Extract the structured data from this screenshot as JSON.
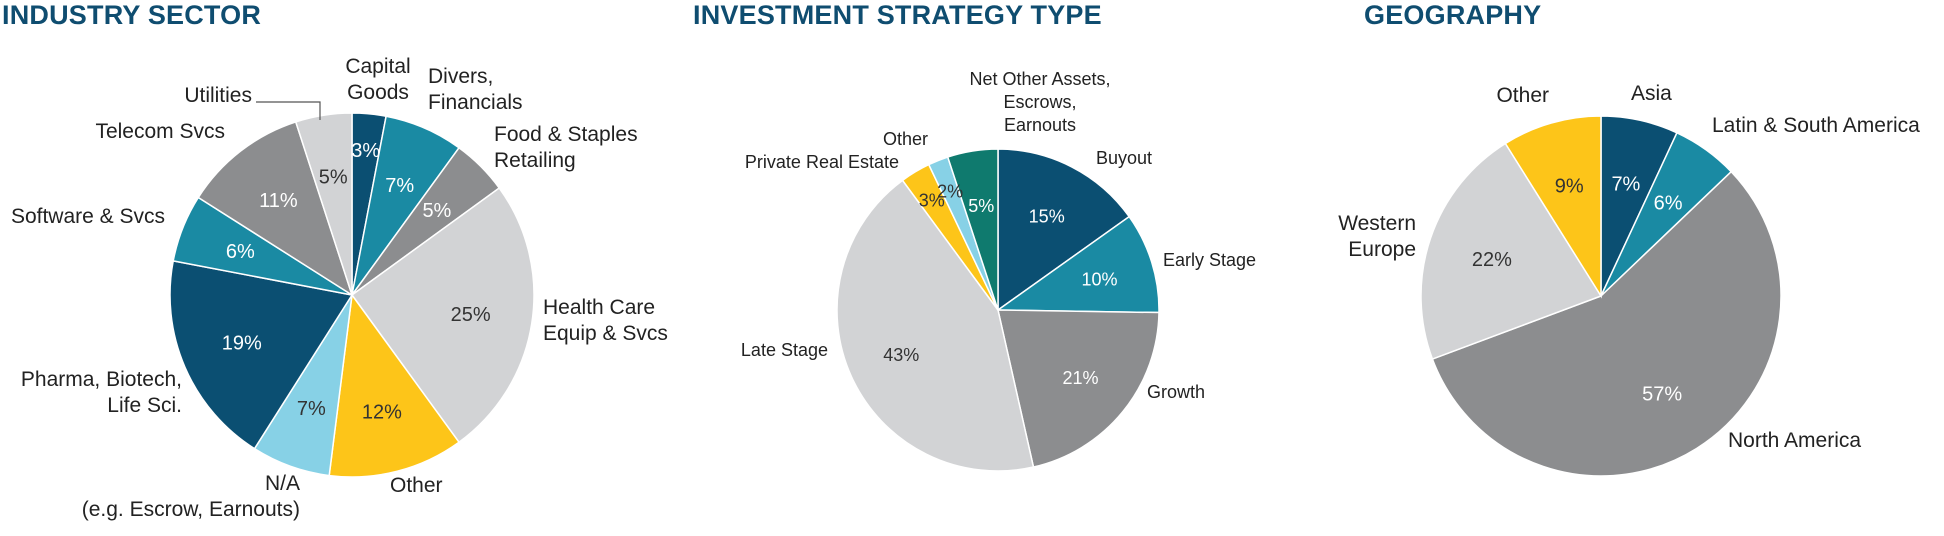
{
  "chart_data": [
    {
      "type": "pie",
      "title": "INDUSTRY SECTOR",
      "slices": [
        {
          "label": "Capital\nGoods",
          "value": 3,
          "value_label": "3%",
          "color": "#0b4f72"
        },
        {
          "label": "Divers,\nFinancials",
          "value": 7,
          "value_label": "7%",
          "color": "#1a8aa3"
        },
        {
          "label": "Food & Staples\nRetailing",
          "value": 5,
          "value_label": "5%",
          "color": "#8c8d8f"
        },
        {
          "label": "Health Care\nEquip & Svcs",
          "value": 25,
          "value_label": "25%",
          "color": "#d2d3d5"
        },
        {
          "label": "Other",
          "value": 12,
          "value_label": "12%",
          "color": "#fdc519"
        },
        {
          "label": "N/A\n(e.g. Escrow, Earnouts)",
          "value": 7,
          "value_label": "7%",
          "color": "#87d1e6"
        },
        {
          "label": "Pharma, Biotech,\nLife Sci.",
          "value": 19,
          "value_label": "19%",
          "color": "#0b4f72"
        },
        {
          "label": "Software & Svcs",
          "value": 6,
          "value_label": "6%",
          "color": "#1a8aa3"
        },
        {
          "label": "Telecom Svcs",
          "value": 11,
          "value_label": "11%",
          "color": "#8c8d8f"
        },
        {
          "label": "Utilities",
          "value": 5,
          "value_label": "5%",
          "color": "#d2d3d5"
        }
      ]
    },
    {
      "type": "pie",
      "title": "INVESTMENT STRATEGY TYPE",
      "slices": [
        {
          "label": "Buyout",
          "value": 15,
          "value_label": "15%",
          "color": "#0b4f72"
        },
        {
          "label": "Early Stage",
          "value": 10,
          "value_label": "10%",
          "color": "#1a8aa3"
        },
        {
          "label": "Growth",
          "value": 21,
          "value_label": "21%",
          "color": "#8c8d8f"
        },
        {
          "label": "Late Stage",
          "value": 43,
          "value_label": "43%",
          "color": "#d2d3d5"
        },
        {
          "label": "Private Real Estate",
          "value": 3,
          "value_label": "3%",
          "color": "#fdc519"
        },
        {
          "label": "Other",
          "value": 2,
          "value_label": "2%",
          "color": "#87d1e6"
        },
        {
          "label": "Net Other Assets,\nEscrows,\nEarnouts",
          "value": 5,
          "value_label": "5%",
          "color": "#0f7a6e"
        }
      ]
    },
    {
      "type": "pie",
      "title": "GEOGRAPHY",
      "slices": [
        {
          "label": "Asia",
          "value": 7,
          "value_label": "7%",
          "color": "#0b4f72"
        },
        {
          "label": "Latin & South America",
          "value": 6,
          "value_label": "6%",
          "color": "#1a8aa3"
        },
        {
          "label": "North America",
          "value": 57,
          "value_label": "57%",
          "color": "#8c8d8f"
        },
        {
          "label": "Western\nEurope",
          "value": 22,
          "value_label": "22%",
          "color": "#d2d3d5"
        },
        {
          "label": "Other",
          "value": 9,
          "value_label": "9%",
          "color": "#fdc519"
        }
      ]
    }
  ]
}
